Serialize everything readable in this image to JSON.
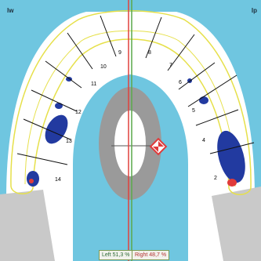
{
  "header": {
    "left_marker": "lw",
    "right_marker": "lp"
  },
  "teeth_labels": {
    "left_side": [
      "10",
      "11",
      "12",
      "13",
      "14"
    ],
    "right_side": [
      "7",
      "6",
      "5",
      "4",
      "2"
    ],
    "upper_left": "9",
    "upper_right": "8"
  },
  "balance": {
    "left_label": "Left 51,3 %",
    "right_label": "Right 48,7 %"
  },
  "colors": {
    "background": "#6fc6e0",
    "arch_fill": "#ffffff",
    "outline": "#e6e04a",
    "pressure": "#223aa0",
    "hotspot": "#e03b3b",
    "center_line": "#e0413d"
  },
  "icons": {
    "center_of_force": "target-diamond-icon"
  }
}
